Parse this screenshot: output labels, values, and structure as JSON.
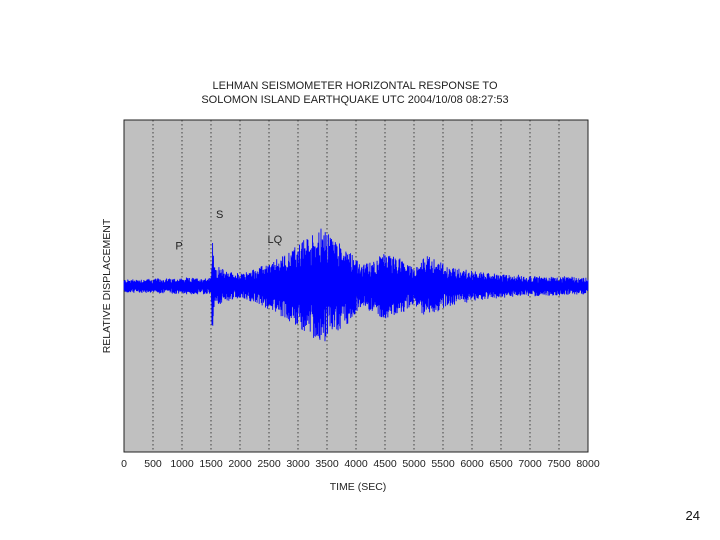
{
  "page": {
    "number": "24"
  },
  "chart_data": {
    "type": "line",
    "title_lines": [
      "LEHMAN SEISMOMETER HORIZONTAL RESPONSE TO",
      "SOLOMON ISLAND EARTHQUAKE     UTC 2004/10/08 08:27:53"
    ],
    "xlabel": "TIME (SEC)",
    "ylabel": "RELATIVE DISPLACEMENT",
    "xlim": [
      0,
      8000
    ],
    "ylim": [
      -1,
      1
    ],
    "x_ticks": [
      0,
      500,
      1000,
      1500,
      2000,
      2500,
      3000,
      3500,
      4000,
      4500,
      5000,
      5500,
      6000,
      6500,
      7000,
      7500,
      8000
    ],
    "x_tick_labels": [
      "0",
      "500",
      "1000",
      "1500",
      "2000",
      "2500",
      "3000",
      "3500",
      "4000",
      "4500",
      "5000",
      "5500",
      "6000",
      "6500",
      "7000",
      "7500",
      "8000"
    ],
    "grid": true,
    "background": "#c0c0c0",
    "series_color": "#0000ff",
    "annotations": [
      {
        "text": "P",
        "x": 950,
        "y": 0.22
      },
      {
        "text": "S",
        "x": 1650,
        "y": 0.41
      },
      {
        "text": "LQ",
        "x": 2600,
        "y": 0.26
      }
    ],
    "envelope": [
      {
        "x": 0,
        "amp": 0.04
      },
      {
        "x": 1500,
        "amp": 0.05
      },
      {
        "x": 1520,
        "amp": 0.3
      },
      {
        "x": 1560,
        "amp": 0.12
      },
      {
        "x": 2000,
        "amp": 0.07
      },
      {
        "x": 2600,
        "amp": 0.15
      },
      {
        "x": 3100,
        "amp": 0.28
      },
      {
        "x": 3400,
        "amp": 0.35
      },
      {
        "x": 3900,
        "amp": 0.22
      },
      {
        "x": 4100,
        "amp": 0.12
      },
      {
        "x": 4500,
        "amp": 0.2
      },
      {
        "x": 4800,
        "amp": 0.16
      },
      {
        "x": 5000,
        "amp": 0.1
      },
      {
        "x": 5200,
        "amp": 0.19
      },
      {
        "x": 5600,
        "amp": 0.12
      },
      {
        "x": 6000,
        "amp": 0.09
      },
      {
        "x": 6500,
        "amp": 0.07
      },
      {
        "x": 7000,
        "amp": 0.06
      },
      {
        "x": 8000,
        "amp": 0.05
      }
    ]
  }
}
